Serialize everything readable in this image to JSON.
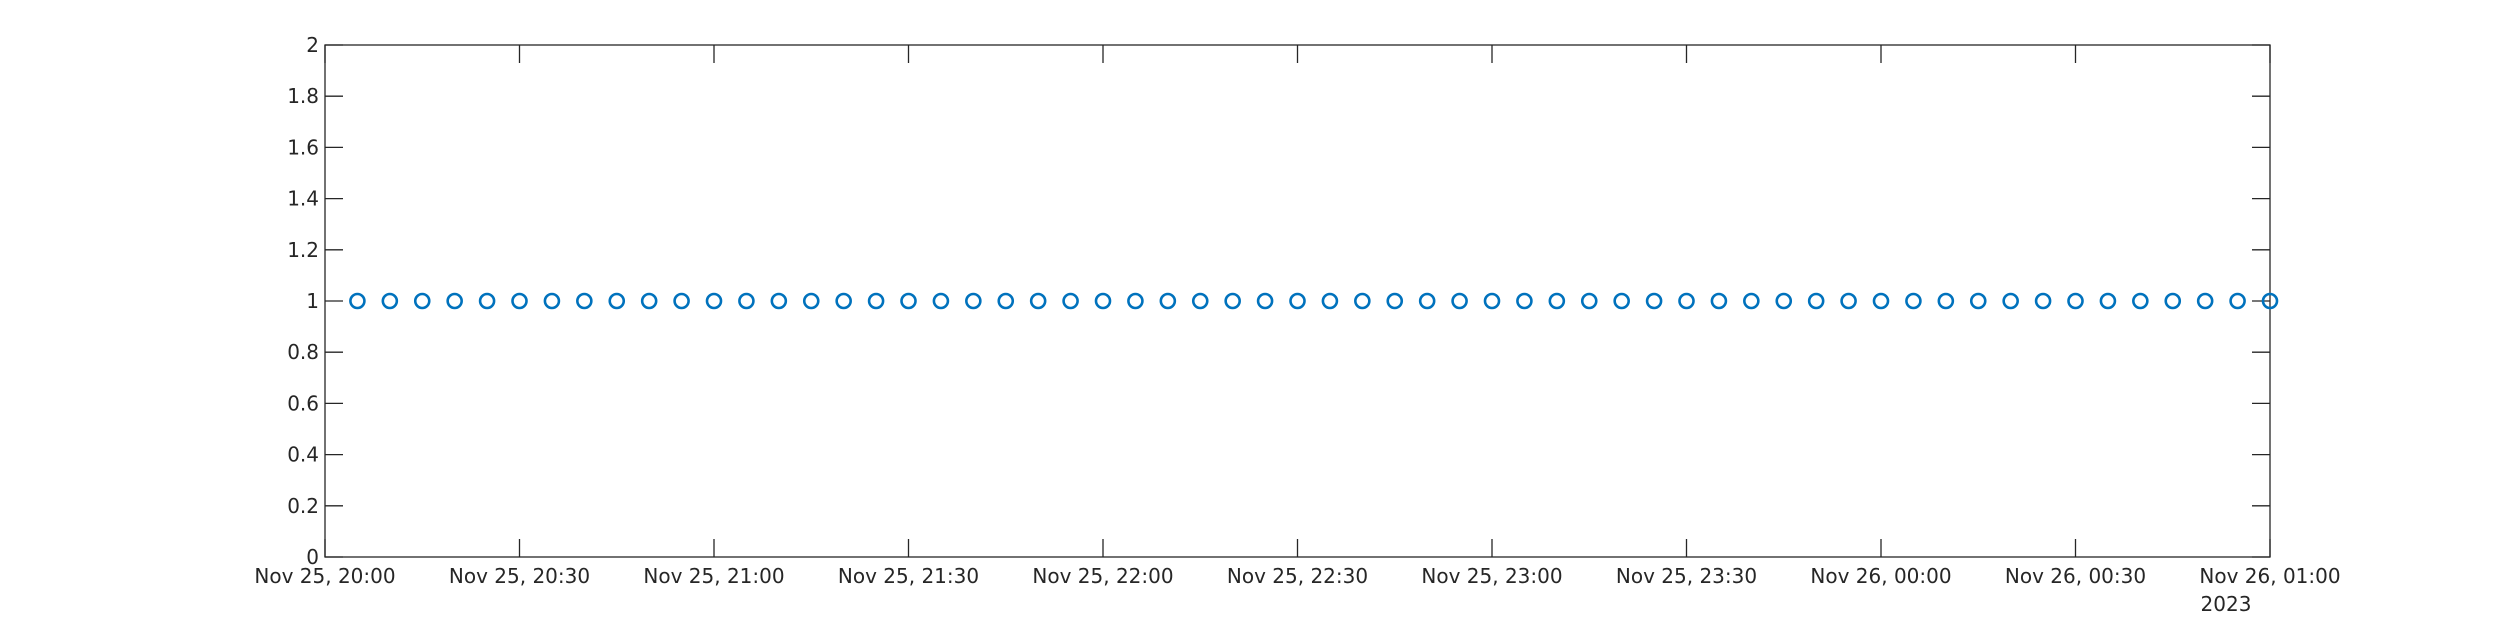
{
  "chart_data": {
    "type": "scatter",
    "title": "",
    "xlabel": "",
    "ylabel": "",
    "x_axis": {
      "kind": "datetime",
      "range": [
        "2023-11-25 20:00",
        "2023-11-26 01:00"
      ],
      "tick_values": [
        "2023-11-25 20:00",
        "2023-11-25 20:30",
        "2023-11-25 21:00",
        "2023-11-25 21:30",
        "2023-11-25 22:00",
        "2023-11-25 22:30",
        "2023-11-25 23:00",
        "2023-11-25 23:30",
        "2023-11-26 00:00",
        "2023-11-26 00:30",
        "2023-11-26 01:00"
      ],
      "tick_labels": [
        "Nov 25, 20:00",
        "Nov 25, 20:30",
        "Nov 25, 21:00",
        "Nov 25, 21:30",
        "Nov 25, 22:00",
        "Nov 25, 22:30",
        "Nov 25, 23:00",
        "Nov 25, 23:30",
        "Nov 26, 00:00",
        "Nov 26, 00:30",
        "Nov 26, 01:00"
      ],
      "secondary_label": "2023"
    },
    "y_axis": {
      "range": [
        0,
        2
      ],
      "tick_values": [
        0,
        0.2,
        0.4,
        0.6,
        0.8,
        1,
        1.2,
        1.4,
        1.6,
        1.8,
        2
      ],
      "tick_labels": [
        "0",
        "0.2",
        "0.4",
        "0.6",
        "0.8",
        "1",
        "1.2",
        "1.4",
        "1.6",
        "1.8",
        "2"
      ]
    },
    "grid": false,
    "series": [
      {
        "marker": "circle",
        "color": "#0072BD",
        "x": [
          "2023-11-25 20:05",
          "2023-11-25 20:10",
          "2023-11-25 20:15",
          "2023-11-25 20:20",
          "2023-11-25 20:25",
          "2023-11-25 20:30",
          "2023-11-25 20:35",
          "2023-11-25 20:40",
          "2023-11-25 20:45",
          "2023-11-25 20:50",
          "2023-11-25 20:55",
          "2023-11-25 21:00",
          "2023-11-25 21:05",
          "2023-11-25 21:10",
          "2023-11-25 21:15",
          "2023-11-25 21:20",
          "2023-11-25 21:25",
          "2023-11-25 21:30",
          "2023-11-25 21:35",
          "2023-11-25 21:40",
          "2023-11-25 21:45",
          "2023-11-25 21:50",
          "2023-11-25 21:55",
          "2023-11-25 22:00",
          "2023-11-25 22:05",
          "2023-11-25 22:10",
          "2023-11-25 22:15",
          "2023-11-25 22:20",
          "2023-11-25 22:25",
          "2023-11-25 22:30",
          "2023-11-25 22:35",
          "2023-11-25 22:40",
          "2023-11-25 22:45",
          "2023-11-25 22:50",
          "2023-11-25 22:55",
          "2023-11-25 23:00",
          "2023-11-25 23:05",
          "2023-11-25 23:10",
          "2023-11-25 23:15",
          "2023-11-25 23:20",
          "2023-11-25 23:25",
          "2023-11-25 23:30",
          "2023-11-25 23:35",
          "2023-11-25 23:40",
          "2023-11-25 23:45",
          "2023-11-25 23:50",
          "2023-11-25 23:55",
          "2023-11-26 00:00",
          "2023-11-26 00:05",
          "2023-11-26 00:10",
          "2023-11-26 00:15",
          "2023-11-26 00:20",
          "2023-11-26 00:25",
          "2023-11-26 00:30",
          "2023-11-26 00:35",
          "2023-11-26 00:40",
          "2023-11-26 00:45",
          "2023-11-26 00:50",
          "2023-11-26 00:55",
          "2023-11-26 01:00"
        ],
        "y": [
          1,
          1,
          1,
          1,
          1,
          1,
          1,
          1,
          1,
          1,
          1,
          1,
          1,
          1,
          1,
          1,
          1,
          1,
          1,
          1,
          1,
          1,
          1,
          1,
          1,
          1,
          1,
          1,
          1,
          1,
          1,
          1,
          1,
          1,
          1,
          1,
          1,
          1,
          1,
          1,
          1,
          1,
          1,
          1,
          1,
          1,
          1,
          1,
          1,
          1,
          1,
          1,
          1,
          1,
          1,
          1,
          1,
          1,
          1,
          1
        ]
      }
    ]
  }
}
